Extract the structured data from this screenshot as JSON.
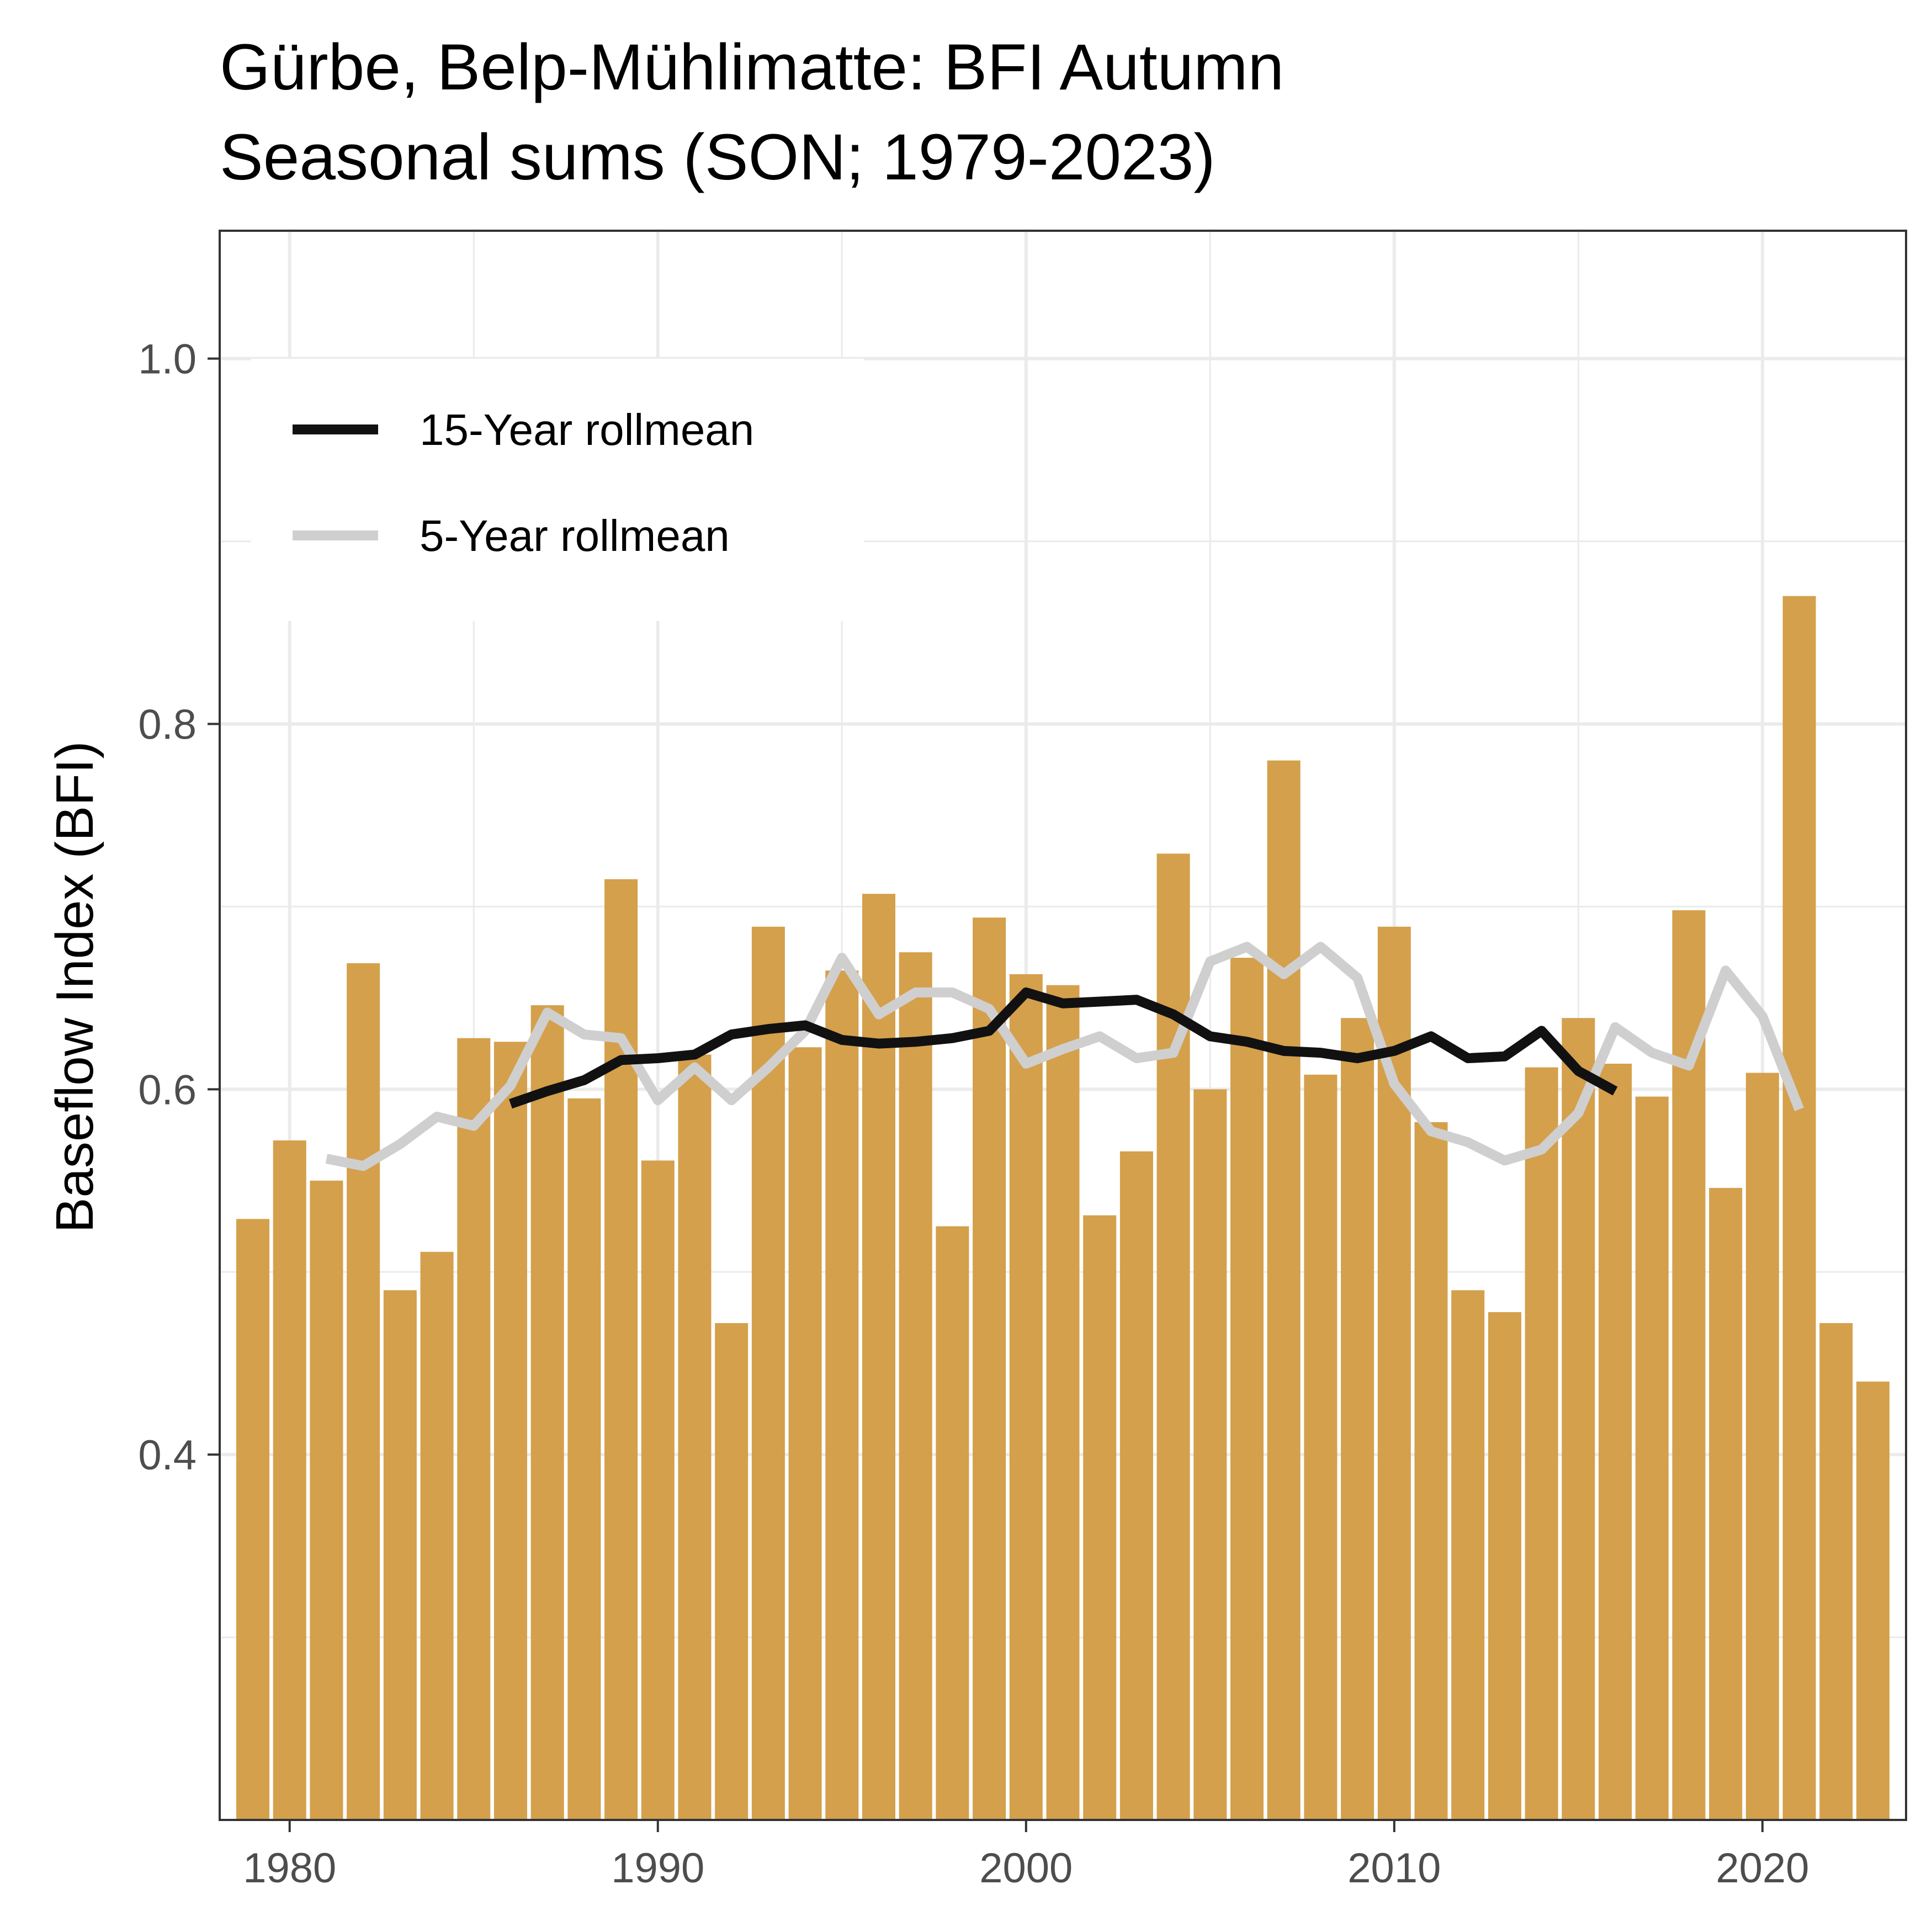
{
  "chart_data": {
    "type": "bar",
    "title_line1": "Gürbe, Belp-Mühlimatte: BFI Autumn",
    "title_line2": "Seasonal sums (SON; 1979-2023)",
    "xlabel": "",
    "ylabel": "Baseflow Index (BFI)",
    "xlim": [
      1978.1,
      2023.9
    ],
    "ylim": [
      0.2,
      1.07
    ],
    "x_ticks": [
      1980,
      1990,
      2000,
      2010,
      2020
    ],
    "y_ticks": [
      0.4,
      0.6,
      0.8,
      1.0
    ],
    "y_tick_labels": [
      "0.4",
      "0.6",
      "0.8",
      "1.0"
    ],
    "grid": true,
    "legend_position": "top-left",
    "colors": {
      "bars": "#d4a04c",
      "rollmean15": "#111111",
      "rollmean5": "#cfcfcf",
      "grid": "#ebebeb",
      "panel_border": "#333333"
    },
    "years": [
      1979,
      1980,
      1981,
      1982,
      1983,
      1984,
      1985,
      1986,
      1987,
      1988,
      1989,
      1990,
      1991,
      1992,
      1993,
      1994,
      1995,
      1996,
      1997,
      1998,
      1999,
      2000,
      2001,
      2002,
      2003,
      2004,
      2005,
      2006,
      2007,
      2008,
      2009,
      2010,
      2011,
      2012,
      2013,
      2014,
      2015,
      2016,
      2017,
      2018,
      2019,
      2020,
      2021,
      2022,
      2023
    ],
    "values": [
      0.529,
      0.572,
      0.55,
      0.669,
      0.49,
      0.511,
      0.628,
      0.626,
      0.646,
      0.595,
      0.715,
      0.561,
      0.619,
      0.472,
      0.689,
      0.623,
      0.665,
      0.707,
      0.675,
      0.525,
      0.694,
      0.663,
      0.657,
      0.531,
      0.566,
      0.729,
      0.6,
      0.672,
      0.78,
      0.608,
      0.639,
      0.689,
      0.582,
      0.49,
      0.478,
      0.612,
      0.639,
      0.614,
      0.596,
      0.698,
      0.546,
      0.609,
      0.87,
      0.472,
      0.44
    ],
    "series": [
      {
        "name": "15-Year rollmean",
        "x": [
          1986,
          1987,
          1988,
          1989,
          1990,
          1991,
          1992,
          1993,
          1994,
          1995,
          1996,
          1997,
          1998,
          1999,
          2000,
          2001,
          2002,
          2003,
          2004,
          2005,
          2006,
          2007,
          2008,
          2009,
          2010,
          2011,
          2012,
          2013,
          2014,
          2015,
          2016
        ],
        "values": [
          0.592,
          0.599,
          0.605,
          0.616,
          0.617,
          0.619,
          0.63,
          0.633,
          0.635,
          0.627,
          0.625,
          0.626,
          0.628,
          0.632,
          0.653,
          0.647,
          0.648,
          0.649,
          0.641,
          0.629,
          0.626,
          0.621,
          0.62,
          0.617,
          0.621,
          0.629,
          0.617,
          0.618,
          0.632,
          0.61,
          0.599
        ]
      },
      {
        "name": "5-Year rollmean",
        "x": [
          1981,
          1982,
          1983,
          1984,
          1985,
          1986,
          1987,
          1988,
          1989,
          1990,
          1991,
          1992,
          1993,
          1994,
          1995,
          1996,
          1997,
          1998,
          1999,
          2000,
          2001,
          2002,
          2003,
          2004,
          2005,
          2006,
          2007,
          2008,
          2009,
          2010,
          2011,
          2012,
          2013,
          2014,
          2015,
          2016,
          2017,
          2018,
          2019,
          2020,
          2021
        ],
        "values": [
          0.562,
          0.558,
          0.57,
          0.585,
          0.58,
          0.602,
          0.642,
          0.63,
          0.628,
          0.594,
          0.612,
          0.594,
          0.612,
          0.632,
          0.672,
          0.641,
          0.653,
          0.653,
          0.644,
          0.614,
          0.622,
          0.629,
          0.617,
          0.62,
          0.67,
          0.678,
          0.663,
          0.678,
          0.661,
          0.603,
          0.577,
          0.571,
          0.561,
          0.567,
          0.587,
          0.634,
          0.62,
          0.613,
          0.665,
          0.64,
          0.589
        ]
      }
    ]
  }
}
